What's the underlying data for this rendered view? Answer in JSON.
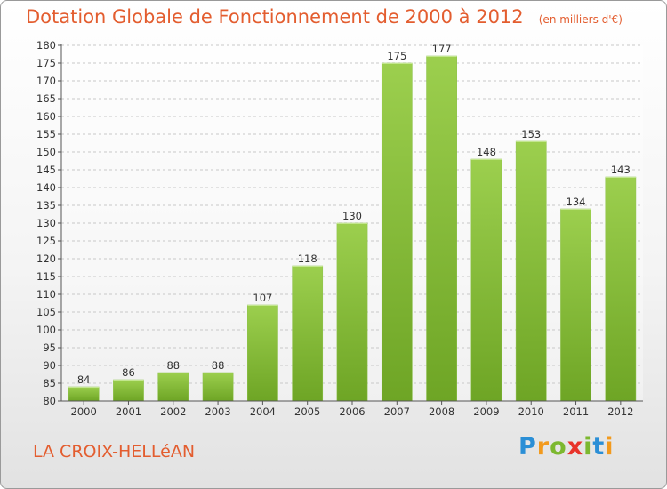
{
  "header": {
    "title": "Dotation Globale de Fonctionnement de 2000 à 2012",
    "unit_note": "(en milliers d'€)"
  },
  "commune": "LA CROIX-HELLéAN",
  "logo": {
    "letters": [
      {
        "char": "P",
        "color": "#2b8fd6"
      },
      {
        "char": "r",
        "color": "#f29a1d"
      },
      {
        "char": "o",
        "color": "#7cb82f"
      },
      {
        "char": "x",
        "color": "#e8332a"
      },
      {
        "char": "i",
        "color": "#7cb82f"
      },
      {
        "char": "t",
        "color": "#2b8fd6"
      },
      {
        "char": "i",
        "color": "#f29a1d"
      }
    ]
  },
  "colors": {
    "accent": "#e35d2f",
    "bar_top": "#9ccf4e",
    "bar_bottom": "#6ea525",
    "grid": "#c8c8c8"
  },
  "chart_data": {
    "type": "bar",
    "title": "Dotation Globale de Fonctionnement de 2000 à 2012",
    "subtitle": "(en milliers d'€)",
    "xlabel": "",
    "ylabel": "",
    "categories": [
      "2000",
      "2001",
      "2002",
      "2003",
      "2004",
      "2005",
      "2006",
      "2007",
      "2008",
      "2009",
      "2010",
      "2011",
      "2012"
    ],
    "values": [
      84,
      86,
      88,
      88,
      107,
      118,
      130,
      175,
      177,
      148,
      153,
      134,
      143
    ],
    "ylim": [
      80,
      180
    ],
    "ytick_step": 5,
    "grid": true,
    "data_labels": true
  }
}
